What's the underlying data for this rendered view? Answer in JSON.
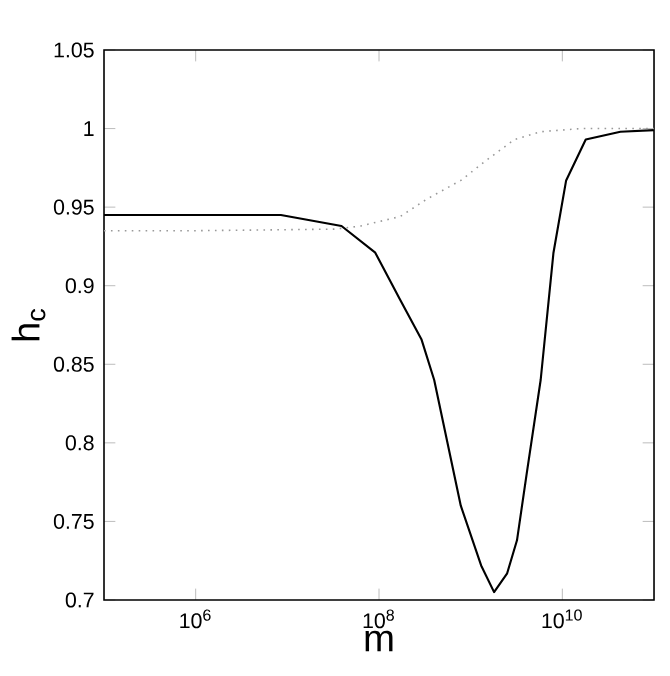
{
  "chart_data": {
    "type": "line",
    "xlabel": "m",
    "ylabel": "h$_{c}$",
    "log": "x",
    "marker": "none",
    "xlim": [
      100000.0,
      100000000000.0
    ],
    "ylim": [
      0.7,
      1.05
    ],
    "xticks": [
      {
        "value": 1000000.0,
        "label": "10$^{6}$"
      },
      {
        "value": 100000000.0,
        "label": "10$^{8}$"
      },
      {
        "value": 10000000000.0,
        "label": "10$^{10}$"
      }
    ],
    "yticks": [
      0.7,
      0.75,
      0.8,
      0.85,
      0.9,
      0.95,
      1,
      1.05
    ],
    "series": [
      {
        "color": "#000000",
        "line_style": "solid",
        "x": [
          100000.0,
          1000000.0,
          8500000.0,
          39000000.0,
          91000000.0,
          170000000.0,
          290000000.0,
          400000000.0,
          780000000.0,
          1300000000.0,
          1800000000.0,
          2500000000.0,
          3200000000.0,
          4100000000.0,
          5800000000.0,
          8000000000.0,
          11000000000.0,
          18000000000.0,
          43000000000.0,
          100000000000.0
        ],
        "values": [
          0.945,
          0.945,
          0.945,
          0.938,
          0.921,
          0.891,
          0.866,
          0.84,
          0.76,
          0.722,
          0.705,
          0.717,
          0.738,
          0.781,
          0.84,
          0.921,
          0.967,
          0.993,
          0.998,
          0.999
        ]
      },
      {
        "color": "#999999",
        "line_style": "dotted",
        "x": [
          100000.0,
          1000000.0,
          33000000.0,
          63000000.0,
          170000000.0,
          330000000.0,
          780000000.0,
          1500000000.0,
          3000000000.0,
          5800000000.0,
          16000000000.0,
          100000000000.0
        ],
        "values": [
          0.935,
          0.935,
          0.936,
          0.938,
          0.944,
          0.955,
          0.967,
          0.98,
          0.993,
          0.998,
          1,
          1
        ]
      }
    ]
  }
}
